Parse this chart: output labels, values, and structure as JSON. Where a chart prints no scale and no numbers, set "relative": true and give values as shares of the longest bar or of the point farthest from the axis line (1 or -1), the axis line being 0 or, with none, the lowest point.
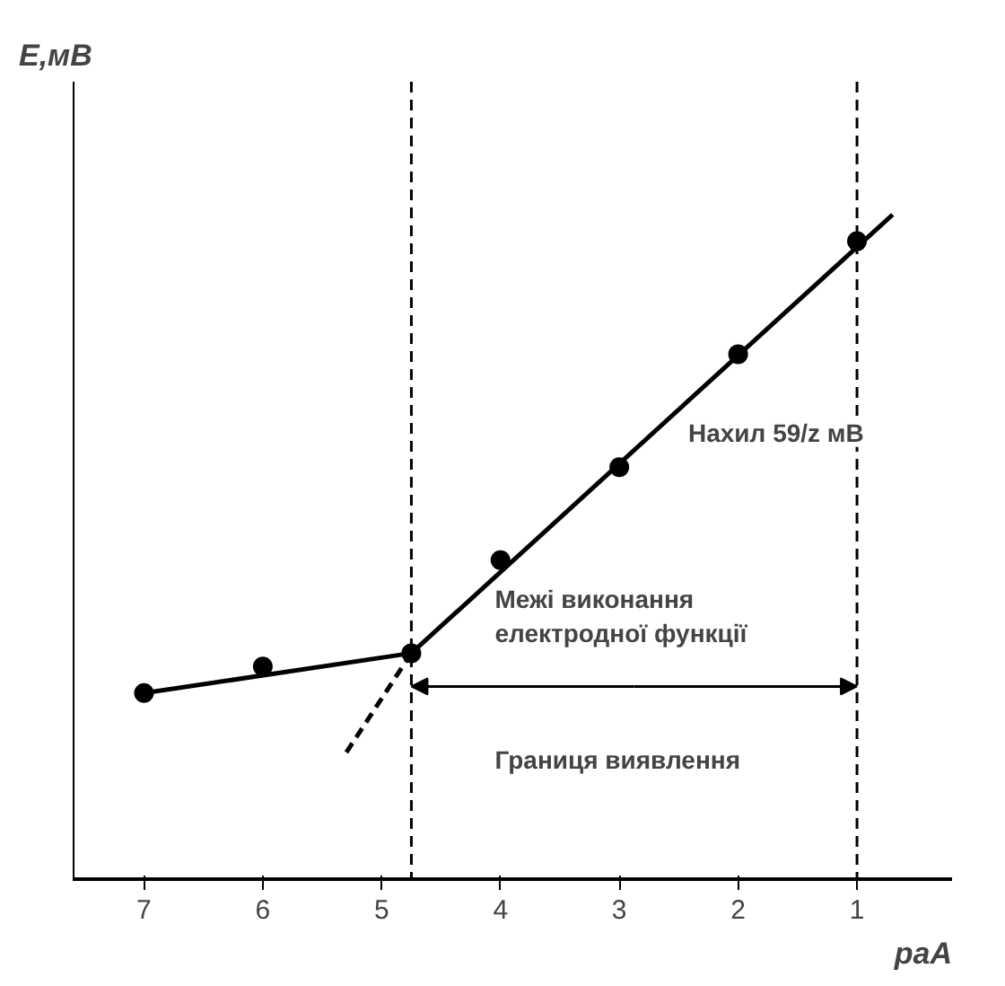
{
  "chart_data": {
    "type": "line",
    "relative": true,
    "xlabel": "paA",
    "ylabel": "E,мВ",
    "x": [
      7,
      6,
      4.75,
      4,
      3,
      2,
      1
    ],
    "xlim": [
      7.6,
      0.2
    ],
    "xticks": [
      7,
      6,
      5,
      4,
      3,
      2,
      1
    ],
    "tick_labels": "x",
    "grid": false,
    "series": [
      {
        "type": "scatter",
        "color": "#000000",
        "marker": "circle",
        "values": [
          0.28,
          0.32,
          0.34,
          0.48,
          0.62,
          0.79,
          0.96
        ]
      },
      {
        "color": "#000000",
        "x": [
          7,
          4.75
        ],
        "values": [
          0.28,
          0.34
        ],
        "line_style": "solid"
      },
      {
        "color": "#000000",
        "x": [
          4.75,
          0.7
        ],
        "values": [
          0.34,
          1.0
        ],
        "line_style": "solid"
      },
      {
        "color": "#000000",
        "x": [
          4.75,
          5.3
        ],
        "values": [
          0.34,
          0.19
        ],
        "line_style": "dashed"
      }
    ],
    "ref_lines": [
      {
        "axis": "x",
        "value": 4.75,
        "line_style": "dashed"
      },
      {
        "axis": "x",
        "value": 1,
        "line_style": "dashed"
      }
    ],
    "annotations": [
      "Нахил 59/z мВ",
      "Межі виконання електродної функції",
      "Границя виявлення"
    ]
  }
}
